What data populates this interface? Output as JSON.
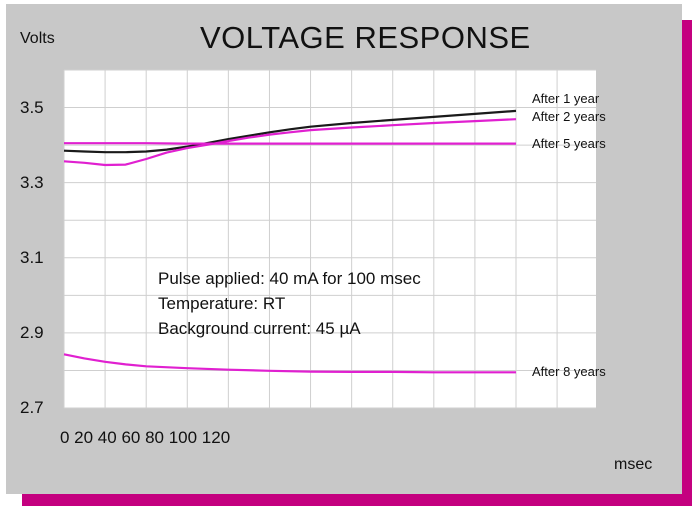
{
  "chart_data": {
    "type": "line",
    "title": "VOLTAGE RESPONSE",
    "ylabel": "Volts",
    "xlabel": "msec",
    "x_tick_labels_text": "0 20 40 60 80 100 120",
    "y_ticks": [
      {
        "value": 2.7,
        "label": "2.7"
      },
      {
        "value": 2.9,
        "label": "2.9"
      },
      {
        "value": 3.1,
        "label": "3.1"
      },
      {
        "value": 3.3,
        "label": "3.3"
      },
      {
        "value": 3.5,
        "label": "3.5"
      }
    ],
    "xlim": [
      0,
      220
    ],
    "ylim": [
      2.7,
      3.6
    ],
    "grid": true,
    "x_grid_values": [
      0,
      20,
      40,
      60,
      80,
      100,
      120,
      140,
      160,
      180,
      200,
      220,
      240,
      260
    ],
    "y_grid_values": [
      2.8,
      3.0,
      3.2,
      3.4,
      3.6
    ],
    "annotation": [
      "Pulse applied: 40 mA for 100 msec",
      "Temperature: RT",
      "Background current: 45 µA"
    ],
    "series": [
      {
        "name": "After 1 year",
        "color": "#1a1a1a",
        "x": [
          0,
          10,
          20,
          30,
          40,
          50,
          60,
          70,
          80,
          90,
          100,
          110,
          120,
          140,
          160,
          180,
          200,
          220
        ],
        "y": [
          3.385,
          3.383,
          3.381,
          3.381,
          3.383,
          3.388,
          3.396,
          3.406,
          3.416,
          3.425,
          3.434,
          3.442,
          3.449,
          3.459,
          3.467,
          3.475,
          3.483,
          3.491
        ]
      },
      {
        "name": "After 2 years",
        "color": "#e020d0",
        "x": [
          0,
          10,
          20,
          30,
          40,
          50,
          60,
          70,
          80,
          90,
          100,
          110,
          120,
          140,
          160,
          180,
          200,
          220
        ],
        "y": [
          3.357,
          3.353,
          3.347,
          3.348,
          3.363,
          3.38,
          3.392,
          3.401,
          3.411,
          3.42,
          3.428,
          3.434,
          3.44,
          3.447,
          3.453,
          3.459,
          3.464,
          3.469
        ]
      },
      {
        "name": "After 5 years",
        "color": "#e020d0",
        "x": [
          0,
          20,
          40,
          60,
          80,
          100,
          120,
          140,
          160,
          180,
          200,
          220
        ],
        "y": [
          3.405,
          3.405,
          3.405,
          3.404,
          3.404,
          3.404,
          3.404,
          3.404,
          3.404,
          3.404,
          3.404,
          3.404
        ]
      },
      {
        "name": "After 8 years",
        "color": "#e020d0",
        "x": [
          0,
          10,
          20,
          30,
          40,
          60,
          80,
          100,
          120,
          140,
          160,
          180,
          200,
          220
        ],
        "y": [
          2.843,
          2.832,
          2.823,
          2.816,
          2.811,
          2.806,
          2.802,
          2.799,
          2.797,
          2.796,
          2.796,
          2.795,
          2.795,
          2.795
        ]
      }
    ]
  }
}
